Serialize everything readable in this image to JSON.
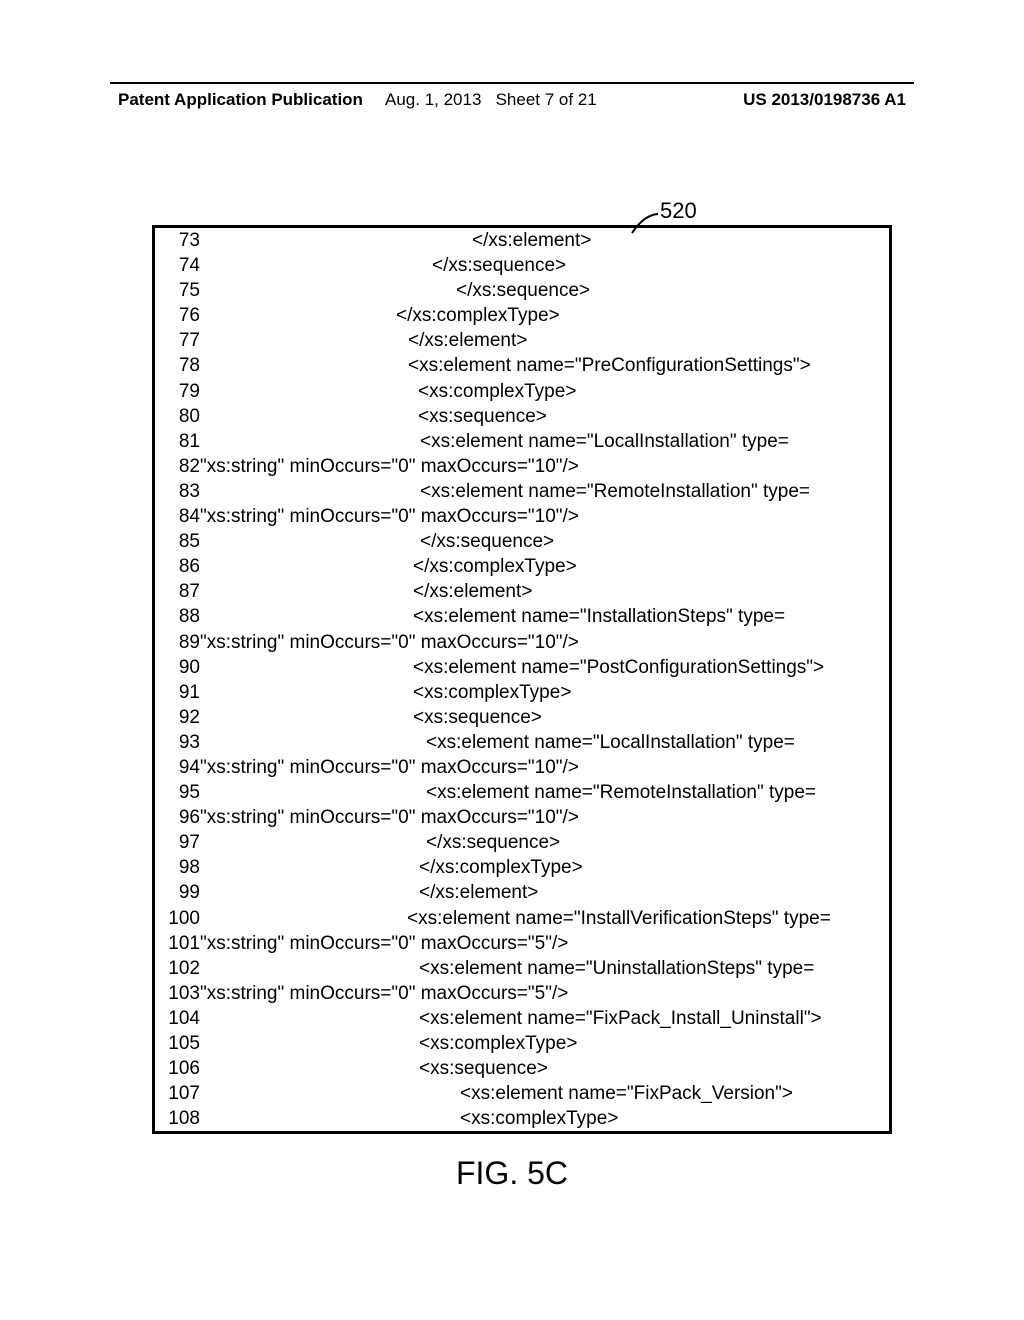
{
  "header": {
    "left": "Patent Application Publication",
    "mid_date": "Aug. 1, 2013",
    "mid_sheet": "Sheet 7 of 21",
    "right": "US 2013/0198736 A1"
  },
  "callout": "520",
  "figure_caption": "FIG. 5C",
  "code_lines": [
    {
      "n": 73,
      "indent": 272,
      "text": "</xs:element>"
    },
    {
      "n": 74,
      "indent": 232,
      "text": "</xs:sequence>"
    },
    {
      "n": 75,
      "indent": 256,
      "text": "</xs:sequence>"
    },
    {
      "n": 76,
      "indent": 196,
      "text": "</xs:complexType>"
    },
    {
      "n": 77,
      "indent": 208,
      "text": "</xs:element>"
    },
    {
      "n": 78,
      "indent": 208,
      "text": "<xs:element name=\"PreConfigurationSettings\">"
    },
    {
      "n": 79,
      "indent": 218,
      "text": "<xs:complexType>"
    },
    {
      "n": 80,
      "indent": 218,
      "text": "<xs:sequence>"
    },
    {
      "n": 81,
      "indent": 220,
      "text": "<xs:element name=\"LocalInstallation\" type="
    },
    {
      "n": 82,
      "indent": 0,
      "text": "\"xs:string\" minOccurs=\"0\" maxOccurs=\"10\"/>"
    },
    {
      "n": 83,
      "indent": 220,
      "text": "<xs:element name=\"RemoteInstallation\" type="
    },
    {
      "n": 84,
      "indent": 0,
      "text": "\"xs:string\" minOccurs=\"0\" maxOccurs=\"10\"/>"
    },
    {
      "n": 85,
      "indent": 220,
      "text": "</xs:sequence>"
    },
    {
      "n": 86,
      "indent": 213,
      "text": "</xs:complexType>"
    },
    {
      "n": 87,
      "indent": 213,
      "text": "</xs:element>"
    },
    {
      "n": 88,
      "indent": 213,
      "text": "<xs:element name=\"InstallationSteps\" type="
    },
    {
      "n": 89,
      "indent": 0,
      "text": "\"xs:string\" minOccurs=\"0\" maxOccurs=\"10\"/>"
    },
    {
      "n": 90,
      "indent": 213,
      "text": "<xs:element name=\"PostConfigurationSettings\">"
    },
    {
      "n": 91,
      "indent": 213,
      "text": "<xs:complexType>"
    },
    {
      "n": 92,
      "indent": 213,
      "text": "<xs:sequence>"
    },
    {
      "n": 93,
      "indent": 226,
      "text": "<xs:element name=\"LocalInstallation\" type="
    },
    {
      "n": 94,
      "indent": 0,
      "text": "\"xs:string\" minOccurs=\"0\" maxOccurs=\"10\"/>"
    },
    {
      "n": 95,
      "indent": 226,
      "text": "<xs:element name=\"RemoteInstallation\" type="
    },
    {
      "n": 96,
      "indent": 0,
      "text": "\"xs:string\" minOccurs=\"0\" maxOccurs=\"10\"/>"
    },
    {
      "n": 97,
      "indent": 226,
      "text": "</xs:sequence>"
    },
    {
      "n": 98,
      "indent": 219,
      "text": "</xs:complexType>"
    },
    {
      "n": 99,
      "indent": 219,
      "text": "</xs:element>"
    },
    {
      "n": 100,
      "indent": 207,
      "text": "<xs:element name=\"InstallVerificationSteps\" type="
    },
    {
      "n": 101,
      "indent": 0,
      "text": "\"xs:string\" minOccurs=\"0\" maxOccurs=\"5\"/>"
    },
    {
      "n": 102,
      "indent": 219,
      "text": "<xs:element name=\"UninstallationSteps\" type="
    },
    {
      "n": 103,
      "indent": 0,
      "text": "\"xs:string\" minOccurs=\"0\" maxOccurs=\"5\"/>"
    },
    {
      "n": 104,
      "indent": 219,
      "text": "<xs:element name=\"FixPack_Install_Uninstall\">"
    },
    {
      "n": 105,
      "indent": 219,
      "text": "<xs:complexType>"
    },
    {
      "n": 106,
      "indent": 219,
      "text": "<xs:sequence>"
    },
    {
      "n": 107,
      "indent": 260,
      "text": "<xs:element name=\"FixPack_Version\">"
    },
    {
      "n": 108,
      "indent": 260,
      "text": "<xs:complexType>"
    }
  ]
}
